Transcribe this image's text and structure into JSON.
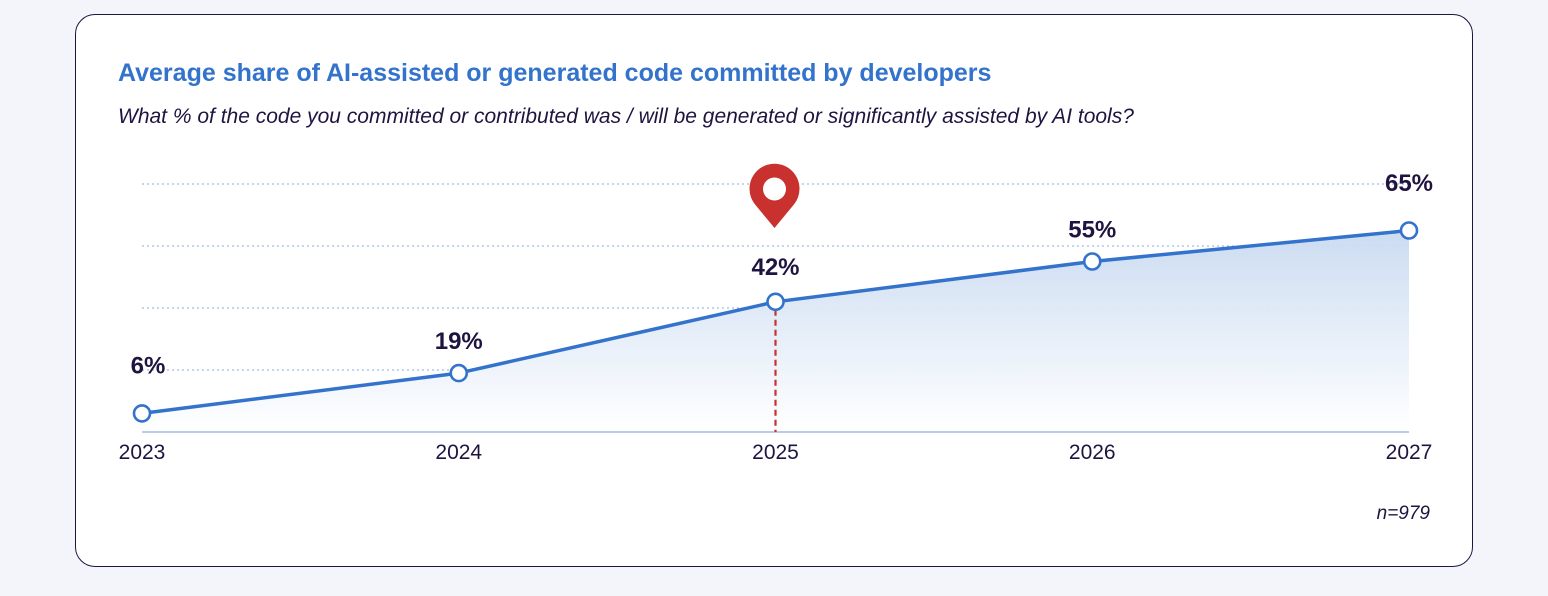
{
  "chart_data": {
    "type": "area",
    "title": "Average share of AI-assisted or generated code committed by developers",
    "subtitle": "What % of the code you committed or contributed was / will be generated or significantly assisted by AI tools?",
    "categories": [
      "2023",
      "2024",
      "2025",
      "2026",
      "2027"
    ],
    "series": [
      {
        "values": [
          6,
          19,
          42,
          55,
          65
        ],
        "labels": [
          "6%",
          "19%",
          "42%",
          "55%",
          "65%"
        ]
      }
    ],
    "highlight": {
      "category": "2025",
      "marker": "location-pin-icon",
      "color": "#c8312e"
    },
    "line_color": "#3373cc",
    "ylim": [
      0,
      80
    ],
    "grid": "horizontal dotted",
    "note": "n=979"
  }
}
